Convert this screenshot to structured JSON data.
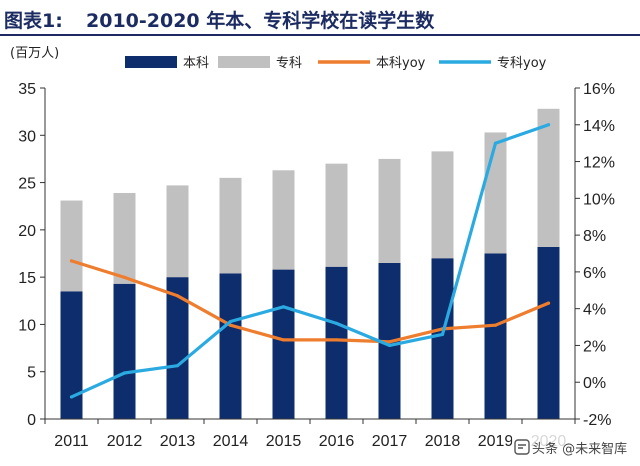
{
  "header": {
    "prefix": "图表1:",
    "title": "2010-2020 年本、专科学校在读学生数"
  },
  "unit": "(百万人)",
  "watermark": {
    "text": "头条 @未来智库",
    "icon": "toutiao-logo-icon"
  },
  "colors": {
    "benke": "#0d2d6c",
    "zhuanke": "#c0c0c0",
    "benke_yoy": "#ef7d2e",
    "zhuanke_yoy": "#2baae2",
    "title": "#1c2c62"
  },
  "chart_data": {
    "type": "bar",
    "stacked": true,
    "categories": [
      "2011",
      "2012",
      "2013",
      "2014",
      "2015",
      "2016",
      "2017",
      "2018",
      "2019",
      "2020"
    ],
    "series": [
      {
        "name": "本科",
        "type": "bar",
        "axis": "left",
        "values": [
          13.5,
          14.3,
          15.0,
          15.4,
          15.8,
          16.1,
          16.5,
          17.0,
          17.5,
          18.2
        ]
      },
      {
        "name": "专科",
        "type": "bar",
        "axis": "left",
        "values": [
          9.6,
          9.6,
          9.7,
          10.1,
          10.5,
          10.9,
          11.0,
          11.3,
          12.8,
          14.6
        ]
      },
      {
        "name": "本科yoy",
        "type": "line",
        "axis": "right",
        "values": [
          6.6,
          5.7,
          4.7,
          3.1,
          2.3,
          2.3,
          2.2,
          2.9,
          3.1,
          4.3
        ]
      },
      {
        "name": "专科yoy",
        "type": "line",
        "axis": "right",
        "values": [
          -0.8,
          0.5,
          0.9,
          3.3,
          4.1,
          3.2,
          2.0,
          2.6,
          13.0,
          14.0
        ]
      }
    ],
    "y_left": {
      "min": 0,
      "max": 35,
      "ticks": [
        "0",
        "5",
        "10",
        "15",
        "20",
        "25",
        "30",
        "35"
      ]
    },
    "y_right": {
      "min": -2,
      "max": 16,
      "ticks": [
        "-2%",
        "0%",
        "2%",
        "4%",
        "6%",
        "8%",
        "10%",
        "12%",
        "14%",
        "16%"
      ]
    },
    "grid": false,
    "legend_position": "top"
  }
}
